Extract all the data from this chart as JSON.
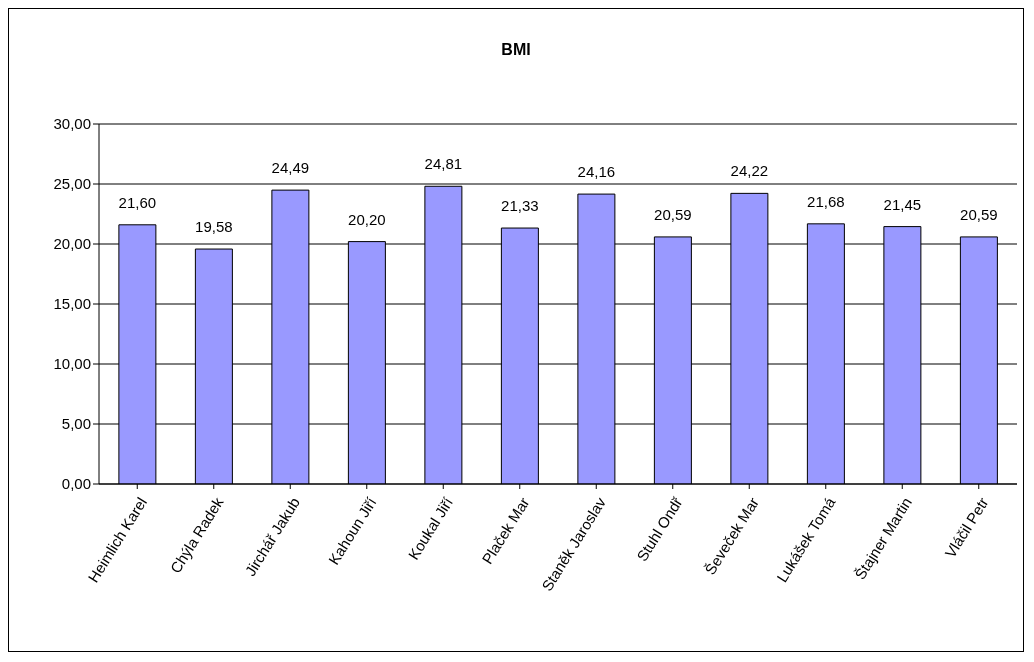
{
  "chart_data": {
    "type": "bar",
    "title": "BMI",
    "categories": [
      "Heimlich Karel",
      "Chýla Radek",
      "Jirchář Jakub",
      "Kahoun Jiří",
      "Koukal Jiří",
      "Plaček Mar",
      "Staněk Jaroslav",
      "Stuhl Ondř",
      "Ševeček Mar",
      "Lukášek Tomá",
      "Štajner Martin",
      "Vláčil Petr"
    ],
    "values": [
      21.6,
      19.58,
      24.49,
      20.2,
      24.81,
      21.33,
      24.16,
      20.59,
      24.22,
      21.68,
      21.45,
      20.59
    ],
    "value_labels": [
      "21,60",
      "19,58",
      "24,49",
      "20,20",
      "24,81",
      "21,33",
      "24,16",
      "20,59",
      "24,22",
      "21,68",
      "21,45",
      "20,59"
    ],
    "color": "#9999ff",
    "ylim": [
      0,
      30
    ],
    "yticks": [
      {
        "value": 0,
        "label": "0,00"
      },
      {
        "value": 5,
        "label": "5,00"
      },
      {
        "value": 10,
        "label": "10,00"
      },
      {
        "value": 15,
        "label": "15,00"
      },
      {
        "value": 20,
        "label": "20,00"
      },
      {
        "value": 25,
        "label": "25,00"
      },
      {
        "value": 30,
        "label": "30,00"
      }
    ],
    "grid": "y"
  }
}
